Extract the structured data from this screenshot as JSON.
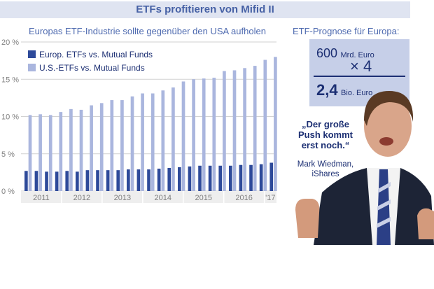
{
  "header": {
    "title": "ETFs profitieren von Mifid II"
  },
  "chart_data": {
    "type": "bar",
    "subtitle": "Europas ETF-Industrie sollte gegenüber den USA aufholen",
    "ylim": [
      0,
      20
    ],
    "yticks": [
      "0 %",
      "5 %",
      "10 %",
      "15 %",
      "20 %"
    ],
    "grid": true,
    "legend": "top-left",
    "year_labels": [
      "2011",
      "2012",
      "2013",
      "2014",
      "2015",
      "2016",
      "'17"
    ],
    "series": [
      {
        "name": "Europ. ETFs vs. Mutual Funds",
        "color": "#2e4a9a",
        "values": [
          2.7,
          2.7,
          2.6,
          2.6,
          2.7,
          2.6,
          2.8,
          2.8,
          2.8,
          2.8,
          2.9,
          2.9,
          2.9,
          3.0,
          3.1,
          3.2,
          3.3,
          3.4,
          3.4,
          3.4,
          3.4,
          3.5,
          3.5,
          3.6,
          3.8
        ]
      },
      {
        "name": "U.S.-ETFs vs. Mutual Funds",
        "color": "#aab6de",
        "values": [
          10.2,
          10.3,
          10.2,
          10.6,
          11.0,
          10.9,
          11.5,
          11.8,
          12.2,
          12.2,
          12.7,
          13.1,
          13.1,
          13.5,
          13.9,
          14.7,
          15.0,
          15.1,
          15.2,
          16.1,
          16.2,
          16.5,
          16.8,
          17.6,
          18.0
        ]
      }
    ]
  },
  "forecast": {
    "title": "ETF-Prognose für Europa:",
    "amount": "600",
    "amount_unit": "Mrd. Euro",
    "multiplier": "× 4",
    "result": "2,4",
    "result_unit": "Bio. Euro"
  },
  "quote": {
    "line1": "„Der große",
    "line2": "Push kommt",
    "line3": "erst noch.“",
    "author": "Mark Wiedman,",
    "company": "iShares"
  }
}
